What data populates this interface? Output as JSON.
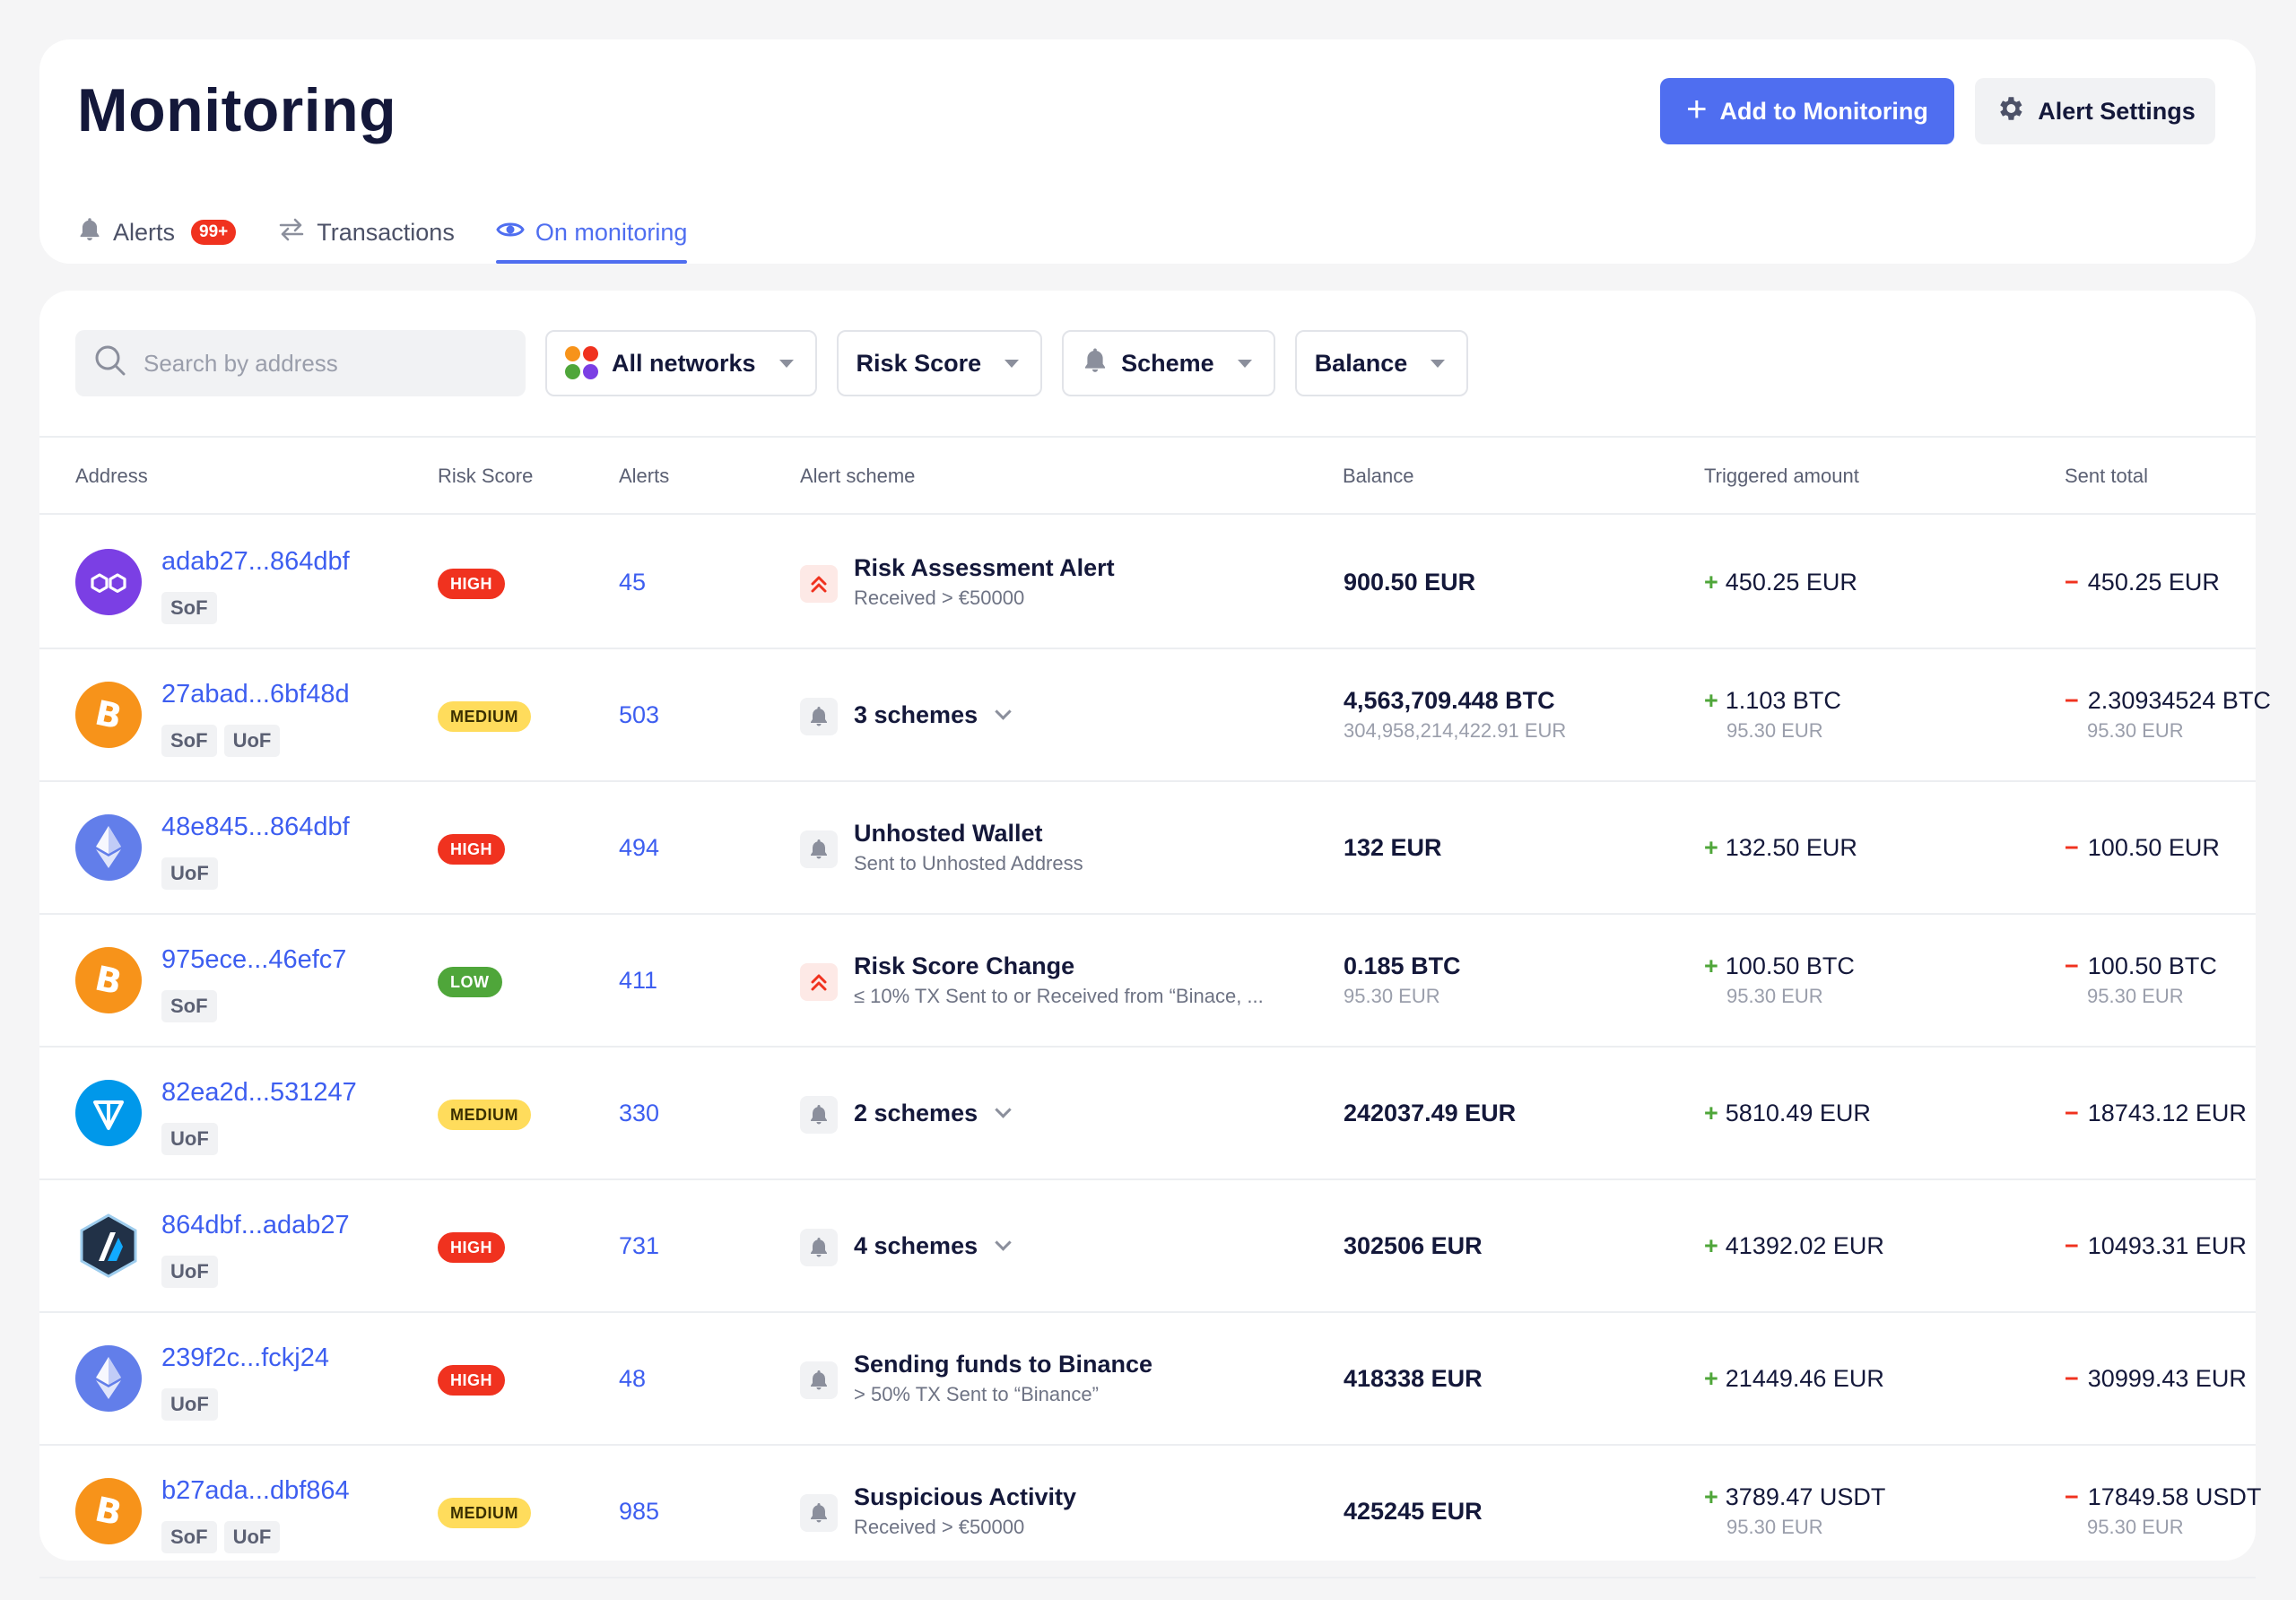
{
  "header": {
    "title": "Monitoring",
    "add_button": "Add to Monitoring",
    "settings_button": "Alert Settings",
    "tabs": [
      {
        "label": "Alerts",
        "badge": "99+"
      },
      {
        "label": "Transactions"
      },
      {
        "label": "On monitoring",
        "active": true
      }
    ]
  },
  "filters": {
    "search_placeholder": "Search by address",
    "networks": "All networks",
    "risk_score": "Risk Score",
    "scheme": "Scheme",
    "balance": "Balance"
  },
  "columns": {
    "address": "Address",
    "risk_score": "Risk Score",
    "alerts": "Alerts",
    "alert_scheme": "Alert scheme",
    "balance": "Balance",
    "triggered": "Triggered amount",
    "sent": "Sent total"
  },
  "colors": {
    "accent": "#4f6ef0",
    "high": "#f0321f",
    "medium": "#ffdc5c",
    "low": "#4fa63a"
  },
  "rows": [
    {
      "coin": "polygon",
      "address": "adab27...864dbf",
      "tags": [
        "SoF"
      ],
      "risk": "HIGH",
      "alerts": "45",
      "scheme_icon": "risk-up",
      "scheme_title": "Risk Assessment Alert",
      "scheme_sub": "Received > €50000",
      "balance": "900.50 EUR",
      "balance_sub": "",
      "triggered": "450.25 EUR",
      "triggered_sub": "",
      "sent": "450.25 EUR",
      "sent_sub": ""
    },
    {
      "coin": "bitcoin",
      "address": "27abad...6bf48d",
      "tags": [
        "SoF",
        "UoF"
      ],
      "risk": "MEDIUM",
      "alerts": "503",
      "scheme_icon": "bell",
      "scheme_title": "3 schemes",
      "scheme_sub": "",
      "balance": "4,563,709.448 BTC",
      "balance_sub": "304,958,214,422.91 EUR",
      "triggered": "1.103 BTC",
      "triggered_sub": "95.30 EUR",
      "sent": "2.30934524 BTC",
      "sent_sub": "95.30 EUR"
    },
    {
      "coin": "ethereum",
      "address": "48e845...864dbf",
      "tags": [
        "UoF"
      ],
      "risk": "HIGH",
      "alerts": "494",
      "scheme_icon": "bell",
      "scheme_title": "Unhosted Wallet",
      "scheme_sub": "Sent to Unhosted Address",
      "balance": "132 EUR",
      "balance_sub": "",
      "triggered": "132.50 EUR",
      "triggered_sub": "",
      "sent": "100.50 EUR",
      "sent_sub": ""
    },
    {
      "coin": "bitcoin",
      "address": "975ece...46efc7",
      "tags": [
        "SoF"
      ],
      "risk": "LOW",
      "alerts": "411",
      "scheme_icon": "risk-up",
      "scheme_title": "Risk Score Change",
      "scheme_sub": "≤ 10% TX Sent to or Received from “Binace, ...",
      "balance": "0.185 BTC",
      "balance_sub": "95.30 EUR",
      "triggered": "100.50 BTC",
      "triggered_sub": "95.30 EUR",
      "sent": "100.50 BTC",
      "sent_sub": "95.30 EUR"
    },
    {
      "coin": "ton",
      "address": "82ea2d...531247",
      "tags": [
        "UoF"
      ],
      "risk": "MEDIUM",
      "alerts": "330",
      "scheme_icon": "bell",
      "scheme_title": "2 schemes",
      "scheme_sub": "",
      "balance": "242037.49 EUR",
      "balance_sub": "",
      "triggered": "5810.49 EUR",
      "triggered_sub": "",
      "sent": "18743.12 EUR",
      "sent_sub": ""
    },
    {
      "coin": "arbitrum",
      "address": "864dbf...adab27",
      "tags": [
        "UoF"
      ],
      "risk": "HIGH",
      "alerts": "731",
      "scheme_icon": "bell",
      "scheme_title": "4 schemes",
      "scheme_sub": "",
      "balance": "302506 EUR",
      "balance_sub": "",
      "triggered": "41392.02 EUR",
      "triggered_sub": "",
      "sent": "10493.31 EUR",
      "sent_sub": ""
    },
    {
      "coin": "ethereum",
      "address": "239f2c...fckj24",
      "tags": [
        "UoF"
      ],
      "risk": "HIGH",
      "alerts": "48",
      "scheme_icon": "bell",
      "scheme_title": "Sending funds to Binance",
      "scheme_sub": "> 50% TX Sent to “Binance”",
      "balance": "418338 EUR",
      "balance_sub": "",
      "triggered": "21449.46 EUR",
      "triggered_sub": "",
      "sent": "30999.43 EUR",
      "sent_sub": ""
    },
    {
      "coin": "bitcoin",
      "address": "b27ada...dbf864",
      "tags": [
        "SoF",
        "UoF"
      ],
      "risk": "MEDIUM",
      "alerts": "985",
      "scheme_icon": "bell",
      "scheme_title": "Suspicious Activity",
      "scheme_sub": "Received > €50000",
      "balance": "425245 EUR",
      "balance_sub": "",
      "triggered": "3789.47 USDT",
      "triggered_sub": "95.30 EUR",
      "sent": "17849.58 USDT",
      "sent_sub": "95.30 EUR"
    }
  ]
}
